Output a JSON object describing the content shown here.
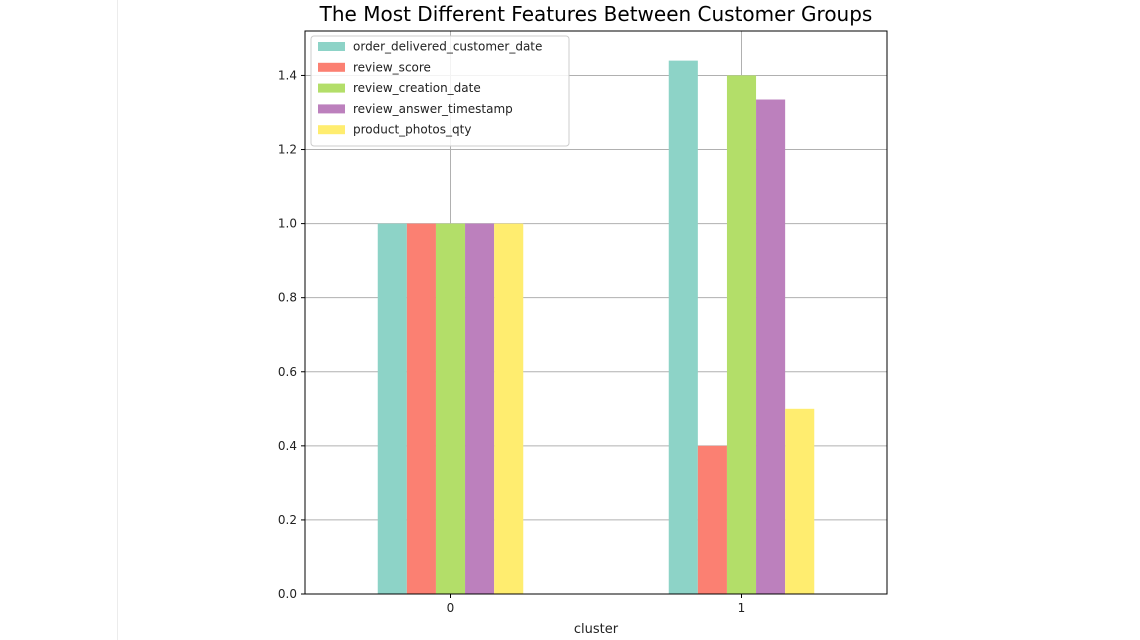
{
  "chart_data": {
    "type": "bar",
    "title": "The Most Different Features Between Customer Groups",
    "xlabel": "cluster",
    "ylabel": "",
    "categories": [
      "0",
      "1"
    ],
    "ylim": [
      0,
      1.52
    ],
    "yticks": [
      "0.0",
      "0.2",
      "0.4",
      "0.6",
      "0.8",
      "1.0",
      "1.2",
      "1.4"
    ],
    "grid": true,
    "legend_position": "top-left",
    "series": [
      {
        "name": "order_delivered_customer_date",
        "color": "#8dd3c7",
        "values": [
          1.0,
          1.44
        ]
      },
      {
        "name": "review_score",
        "color": "#fb8072",
        "values": [
          1.0,
          0.4
        ]
      },
      {
        "name": "review_creation_date",
        "color": "#b3de69",
        "values": [
          1.0,
          1.4
        ]
      },
      {
        "name": "review_answer_timestamp",
        "color": "#bc80bd",
        "values": [
          1.0,
          1.335
        ]
      },
      {
        "name": "product_photos_qty",
        "color": "#ffed6f",
        "values": [
          1.0,
          0.5
        ]
      }
    ]
  }
}
